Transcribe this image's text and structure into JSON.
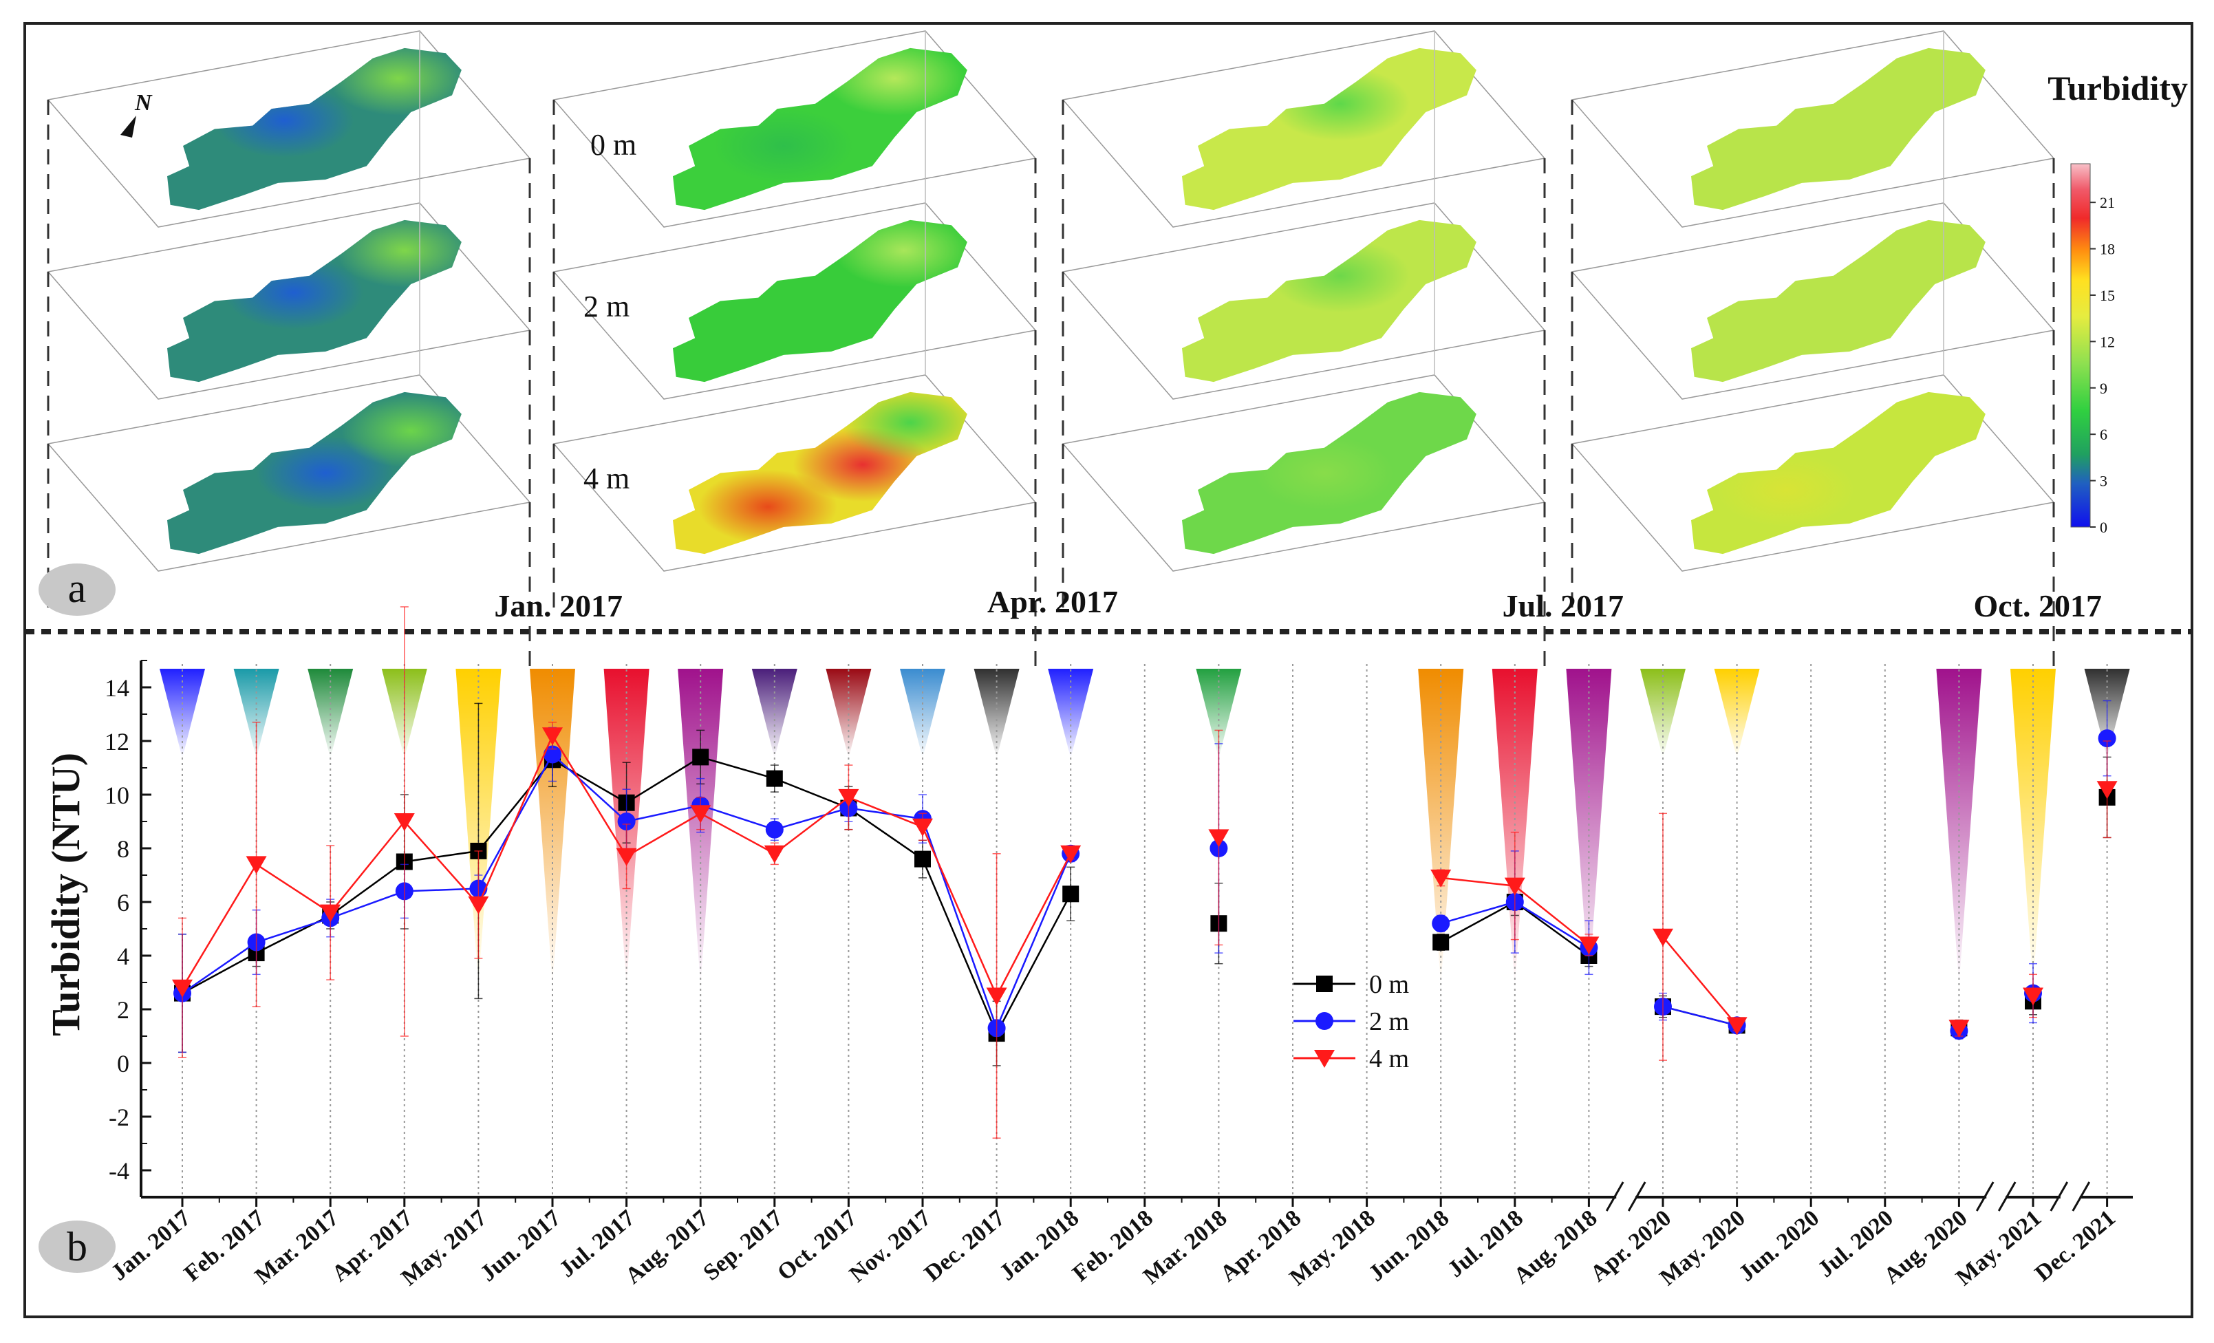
{
  "panel_a": {
    "label": "a",
    "colorbar_title": "Turbidity",
    "colorbar_ticks": [
      "21",
      "18",
      "15",
      "12",
      "9",
      "6",
      "3",
      "0"
    ],
    "depth_labels": [
      "0 m",
      "2 m",
      "4 m"
    ],
    "north_label": "N",
    "maps": [
      {
        "title": "Jan. 2017",
        "layers": [
          {
            "base": "#2e8b7a",
            "hot": [
              [
                0.42,
                0.45,
                "#1f5fd0"
              ],
              [
                0.78,
                0.2,
                "#7fd64a"
              ]
            ]
          },
          {
            "base": "#2e8b7a",
            "hot": [
              [
                0.45,
                0.45,
                "#1f5fd0"
              ],
              [
                0.8,
                0.2,
                "#7fd64a"
              ]
            ]
          },
          {
            "base": "#2e8b7a",
            "hot": [
              [
                0.55,
                0.5,
                "#1f5fd0"
              ],
              [
                0.82,
                0.25,
                "#6cd44a"
              ]
            ]
          }
        ]
      },
      {
        "title": "Apr. 2017",
        "layers": [
          {
            "base": "#3ccf3c",
            "hot": [
              [
                0.75,
                0.2,
                "#b5e85a"
              ],
              [
                0.4,
                0.6,
                "#2fbf4a"
              ]
            ]
          },
          {
            "base": "#38cc3a",
            "hot": [
              [
                0.78,
                0.2,
                "#a8e65a"
              ]
            ]
          },
          {
            "base": "#e8dc2a",
            "hot": [
              [
                0.35,
                0.7,
                "#e84a1a"
              ],
              [
                0.65,
                0.45,
                "#e83030"
              ],
              [
                0.8,
                0.2,
                "#4cd44a"
              ]
            ]
          }
        ]
      },
      {
        "title": "Jul. 2017",
        "layers": [
          {
            "base": "#c8e84a",
            "hot": [
              [
                0.55,
                0.35,
                "#5ed84a"
              ]
            ]
          },
          {
            "base": "#bde64a",
            "hot": [
              [
                0.55,
                0.35,
                "#6ed84a"
              ]
            ]
          },
          {
            "base": "#6ed84a",
            "hot": [
              [
                0.5,
                0.5,
                "#88dc4a"
              ]
            ]
          }
        ]
      },
      {
        "title": "Oct. 2017",
        "layers": [
          {
            "base": "#b8e44a",
            "hot": []
          },
          {
            "base": "#b8e44a",
            "hot": []
          },
          {
            "base": "#c6e63e",
            "hot": [
              [
                0.35,
                0.6,
                "#d8e436"
              ]
            ]
          }
        ]
      }
    ]
  },
  "chart_data": {
    "type": "line",
    "panel_label": "b",
    "ylabel": "Turbidity (NTU)",
    "ylim": [
      -5,
      15
    ],
    "yticks": [
      -4,
      -2,
      0,
      2,
      4,
      6,
      8,
      10,
      12,
      14
    ],
    "grid": "vertical dotted lines at each month",
    "legend_position": "center",
    "categories": [
      "Jan. 2017",
      "Feb. 2017",
      "Mar. 2017",
      "Apr. 2017",
      "May. 2017",
      "Jun. 2017",
      "Jul. 2017",
      "Aug. 2017",
      "Sep. 2017",
      "Oct. 2017",
      "Nov. 2017",
      "Dec. 2017",
      "Jan. 2018",
      "Feb. 2018",
      "Mar. 2018",
      "Apr. 2018",
      "May. 2018",
      "Jun. 2018",
      "Jul. 2018",
      "Aug. 2018",
      "Apr. 2020",
      "May. 2020",
      "Jun. 2020",
      "Jul. 2020",
      "Aug. 2020",
      "May. 2021",
      "Dec. 2021"
    ],
    "axis_breaks_after_index": [
      19,
      24,
      25
    ],
    "series": [
      {
        "name": "0 m",
        "color": "#000000",
        "marker": "square",
        "values": [
          2.6,
          4.1,
          5.5,
          7.5,
          7.9,
          11.3,
          9.7,
          11.4,
          10.6,
          9.5,
          7.6,
          1.1,
          6.3,
          null,
          5.2,
          null,
          null,
          4.5,
          6.0,
          4.0,
          2.1,
          1.4,
          null,
          null,
          1.3,
          2.3,
          9.9
        ],
        "errors": [
          2.2,
          0.5,
          0.5,
          2.5,
          5.5,
          1.0,
          1.5,
          1.0,
          0.5,
          0.8,
          0.7,
          1.2,
          1.0,
          null,
          1.5,
          null,
          null,
          0.3,
          0.5,
          0.4,
          0.4,
          0.2,
          null,
          null,
          0.3,
          0.5,
          1.5
        ]
      },
      {
        "name": "2 m",
        "color": "#1a1aff",
        "marker": "circle",
        "values": [
          2.6,
          4.5,
          5.4,
          6.4,
          6.5,
          11.5,
          9.0,
          9.6,
          8.7,
          9.5,
          9.1,
          1.3,
          7.8,
          null,
          8.0,
          null,
          null,
          5.2,
          6.0,
          4.3,
          2.1,
          1.4,
          null,
          null,
          1.2,
          2.6,
          12.1
        ],
        "errors": [
          2.2,
          1.2,
          0.7,
          1.0,
          0.5,
          1.0,
          1.2,
          1.0,
          0.4,
          0.5,
          0.9,
          0.3,
          0.3,
          null,
          3.9,
          null,
          null,
          0.3,
          1.9,
          1.0,
          0.5,
          0.2,
          null,
          null,
          0.3,
          1.1,
          1.4
        ]
      },
      {
        "name": "4 m",
        "color": "#ff1a1a",
        "marker": "triangle-down",
        "values": [
          2.8,
          7.4,
          5.6,
          9.0,
          5.9,
          12.2,
          7.7,
          9.3,
          7.8,
          9.9,
          8.8,
          2.5,
          7.8,
          null,
          8.4,
          null,
          null,
          6.9,
          6.6,
          4.4,
          4.7,
          1.4,
          null,
          null,
          1.3,
          2.5,
          10.2
        ],
        "errors": [
          2.6,
          5.3,
          2.5,
          8.0,
          2.0,
          0.5,
          1.2,
          0.6,
          0.4,
          1.2,
          0.5,
          5.3,
          0.2,
          null,
          4.0,
          null,
          null,
          0.3,
          2.0,
          0.4,
          4.6,
          0.2,
          null,
          null,
          0.3,
          0.8,
          1.8
        ]
      }
    ],
    "month_colors": [
      "#2020ff",
      "#1a9aa8",
      "#1e8a3a",
      "#8cbf1a",
      "#ffd000",
      "#f08c00",
      "#e8102e",
      "#a0128c",
      "#4a1e7a",
      "#9a0a14",
      "#3a8cd0",
      "#303030",
      "#2020ff",
      null,
      "#22a040",
      null,
      null,
      "#f08c00",
      "#e8102e",
      "#a0128c",
      "#8cbf1a",
      "#ffd000",
      null,
      null,
      "#a0128c",
      "#ffd000",
      "#303030"
    ]
  }
}
